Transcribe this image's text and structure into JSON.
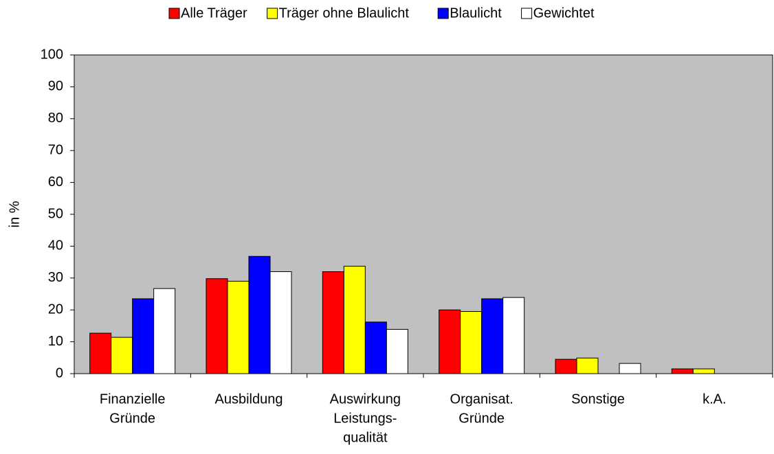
{
  "chart_data": {
    "type": "bar",
    "y_label": "in %",
    "categories": [
      [
        "Finanzielle",
        "Gründe"
      ],
      [
        "Ausbildung"
      ],
      [
        "Auswirkung",
        "Leistungs-",
        "qualität"
      ],
      [
        "Organisat.",
        "Gründe"
      ],
      [
        "Sonstige"
      ],
      [
        "k.A."
      ]
    ],
    "series": [
      {
        "name": "Alle Träger",
        "color": "#ff0000",
        "values": [
          12.7,
          29.8,
          32.0,
          20.0,
          4.5,
          1.5
        ]
      },
      {
        "name": "Träger ohne Blaulicht",
        "color": "#ffff00",
        "values": [
          11.4,
          29.0,
          33.7,
          19.5,
          4.9,
          1.5
        ]
      },
      {
        "name": "Blaulicht",
        "color": "#0000ff",
        "values": [
          23.5,
          36.8,
          16.2,
          23.5,
          null,
          null
        ]
      },
      {
        "name": "Gewichtet",
        "color": "#ffffff",
        "values": [
          26.7,
          32.0,
          13.9,
          23.9,
          3.2,
          null
        ]
      }
    ],
    "ylim": [
      0,
      100
    ],
    "yticks": [
      0,
      10,
      20,
      30,
      40,
      50,
      60,
      70,
      80,
      90,
      100
    ],
    "grid": false,
    "legend": "top",
    "plot_background": "#c0c0c0"
  }
}
